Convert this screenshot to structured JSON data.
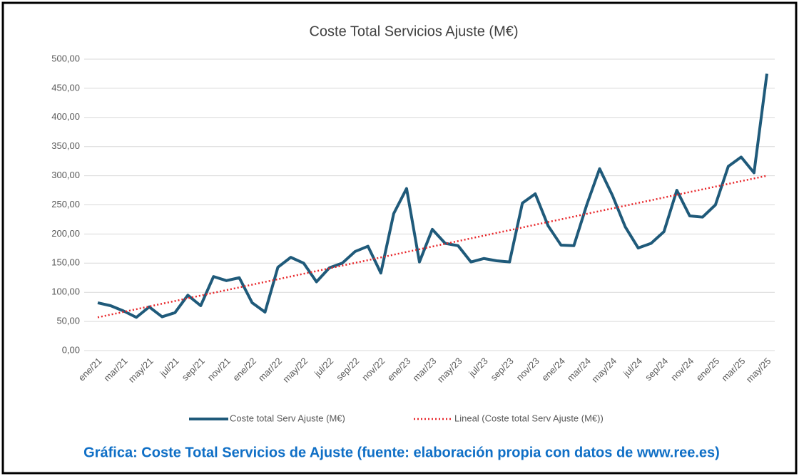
{
  "chart_data": {
    "type": "line",
    "title": "Coste Total Servicios Ajuste (M€)",
    "caption": "Gráfica: Coste Total Servicios de Ajuste (fuente: elaboración propia con datos de www.ree.es)",
    "categories": [
      "ene/21",
      null,
      "mar/21",
      null,
      "may/21",
      null,
      "jul/21",
      null,
      "sep/21",
      null,
      "nov/21",
      null,
      "ene/22",
      null,
      "mar/22",
      null,
      "may/22",
      null,
      "jul/22",
      null,
      "sep/22",
      null,
      "nov/22",
      null,
      "ene/23",
      null,
      "mar/23",
      null,
      "may/23",
      null,
      "jul/23",
      null,
      "sep/23",
      null,
      "nov/23",
      null,
      "ene/24",
      null,
      "mar/24",
      null,
      "may/24",
      null,
      "jul/24",
      null,
      "sep/24",
      null,
      "nov/24",
      null,
      "ene/25",
      null,
      "mar/25",
      null,
      "may/25"
    ],
    "series": [
      {
        "name": "Coste total Serv Ajuste (M€)",
        "color": "#1f5a7a",
        "style": "solid",
        "values": [
          82,
          77,
          68,
          57,
          75,
          58,
          65,
          95,
          77,
          127,
          120,
          125,
          82,
          66,
          143,
          160,
          150,
          118,
          142,
          150,
          170,
          179,
          133,
          235,
          278,
          152,
          208,
          184,
          180,
          152,
          158,
          154,
          152,
          253,
          269,
          214,
          181,
          180,
          250,
          312,
          266,
          212,
          176,
          184,
          204,
          275,
          231,
          229,
          250,
          316,
          332,
          305,
          475
        ]
      },
      {
        "name": "Lineal (Coste total Serv Ajuste (M€))",
        "color": "#e8262a",
        "style": "dotted",
        "values": [
          57,
          61.7,
          66.3,
          71,
          75.7,
          80.4,
          85,
          89.7,
          94.4,
          99.1,
          103.7,
          108.4,
          113.1,
          117.8,
          122.4,
          127.1,
          131.8,
          136.4,
          141.1,
          145.8,
          150.5,
          155.1,
          159.8,
          164.5,
          169.2,
          173.8,
          178.5,
          183.2,
          187.8,
          192.5,
          197.2,
          201.9,
          206.5,
          211.2,
          215.9,
          220.6,
          225.2,
          229.9,
          234.6,
          239.3,
          243.9,
          248.6,
          253.3,
          257.9,
          262.6,
          267.3,
          272,
          276.6,
          281.3,
          286,
          290.7,
          295.3,
          300
        ]
      }
    ],
    "ylim": [
      0,
      500
    ],
    "yticks": [
      {
        "value": 0,
        "label": "0,00"
      },
      {
        "value": 50,
        "label": "50,00"
      },
      {
        "value": 100,
        "label": "100,00"
      },
      {
        "value": 150,
        "label": "150,00"
      },
      {
        "value": 200,
        "label": "200,00"
      },
      {
        "value": 250,
        "label": "250,00"
      },
      {
        "value": 300,
        "label": "300,00"
      },
      {
        "value": 350,
        "label": "350,00"
      },
      {
        "value": 400,
        "label": "400,00"
      },
      {
        "value": 450,
        "label": "450,00"
      },
      {
        "value": 500,
        "label": "500,00"
      }
    ],
    "grid": true,
    "legend": "bottom"
  }
}
